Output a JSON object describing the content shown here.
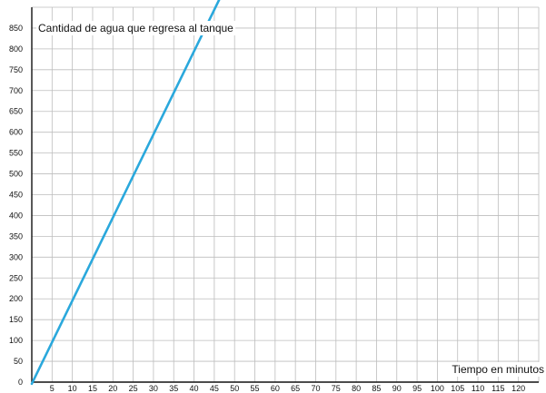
{
  "chart_data": {
    "type": "line",
    "title": "",
    "xlabel": "Tiempo en minutos",
    "ylabel": "Cantidad de agua que regresa al tanque",
    "xlim": [
      0,
      125
    ],
    "ylim": [
      0,
      900
    ],
    "x_major_step": 5,
    "y_major_step": 50,
    "x_ticks": [
      5,
      10,
      15,
      20,
      25,
      30,
      35,
      40,
      45,
      50,
      55,
      60,
      65,
      70,
      75,
      80,
      85,
      90,
      95,
      100,
      105,
      110,
      115,
      120
    ],
    "y_ticks": [
      0,
      50,
      100,
      150,
      200,
      250,
      300,
      350,
      400,
      450,
      500,
      550,
      600,
      650,
      700,
      750,
      800,
      850
    ],
    "grid": true,
    "series": [
      {
        "x": [
          0,
          47
        ],
        "y": [
          -4,
          934
        ]
      }
    ],
    "colors": {
      "line": "#2aa8dc",
      "grid": "#bdbdbd",
      "axis": "#111111",
      "text": "#111111"
    }
  }
}
